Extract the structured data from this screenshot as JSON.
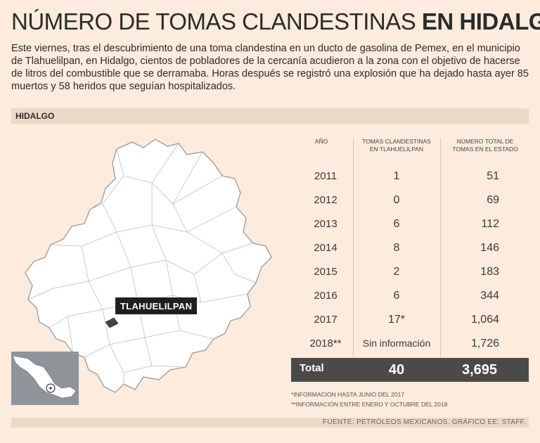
{
  "header": {
    "title_light": "NÚMERO DE TOMAS CLANDESTINAS",
    "title_bold": "EN HIDALGO",
    "lede": "Este viernes, tras el descubrimiento de una toma clandestina en un ducto de gasolina de Pemex, en el municipio de Tlahuelilpan, en Hidalgo, cientos de pobladores de la cercanía acudieron a la zona con el objetivo de hacerse de litros del combustible que se derramaba. Horas después se registró una explosión que ha dejado hasta ayer 85 muertos y 58 heridos que seguían hospitalizados."
  },
  "section": {
    "label": "HIDALGO"
  },
  "map": {
    "callout": "TLAHUELILPAN",
    "colors": {
      "map_fill": "#ffffff",
      "map_stroke": "#9a9a9a",
      "highlight": "#444444",
      "inset_bg": "#8f949a"
    }
  },
  "chart_data": {
    "type": "table",
    "columns": [
      "AÑO",
      "TOMAS CLANDESTINAS EN TLAHUELILPAN",
      "NÚMERO TOTAL DE TOMAS EN EL ESTADO"
    ],
    "column_lines": [
      [
        "AÑO"
      ],
      [
        "TOMAS CLANDESTINAS",
        "EN TLAHUELILPAN"
      ],
      [
        "NÚMERO TOTAL DE",
        "TOMAS EN EL ESTADO"
      ]
    ],
    "rows": [
      {
        "year": "2011",
        "local": "1",
        "state": "51"
      },
      {
        "year": "2012",
        "local": "0",
        "state": "69"
      },
      {
        "year": "2013",
        "local": "6",
        "state": "112"
      },
      {
        "year": "2014",
        "local": "8",
        "state": "146"
      },
      {
        "year": "2015",
        "local": "2",
        "state": "183"
      },
      {
        "year": "2016",
        "local": "6",
        "state": "344"
      },
      {
        "year": "2017",
        "local": "17*",
        "state": "1,064"
      },
      {
        "year": "2018**",
        "local": "Sin información",
        "state": "1,726"
      }
    ],
    "total": {
      "label": "Total",
      "local": "40",
      "state": "3,695"
    }
  },
  "notes": [
    "*INFORMACIÓN HASTA JUNIO DEL 2017",
    "**INFORMACIÓN ENTRE ENERO Y OCTUBRE DEL 2018"
  ],
  "source": "FUENTE: PETRÓLEOS MEXICANOS. GRÁFICO EE: STAFF."
}
